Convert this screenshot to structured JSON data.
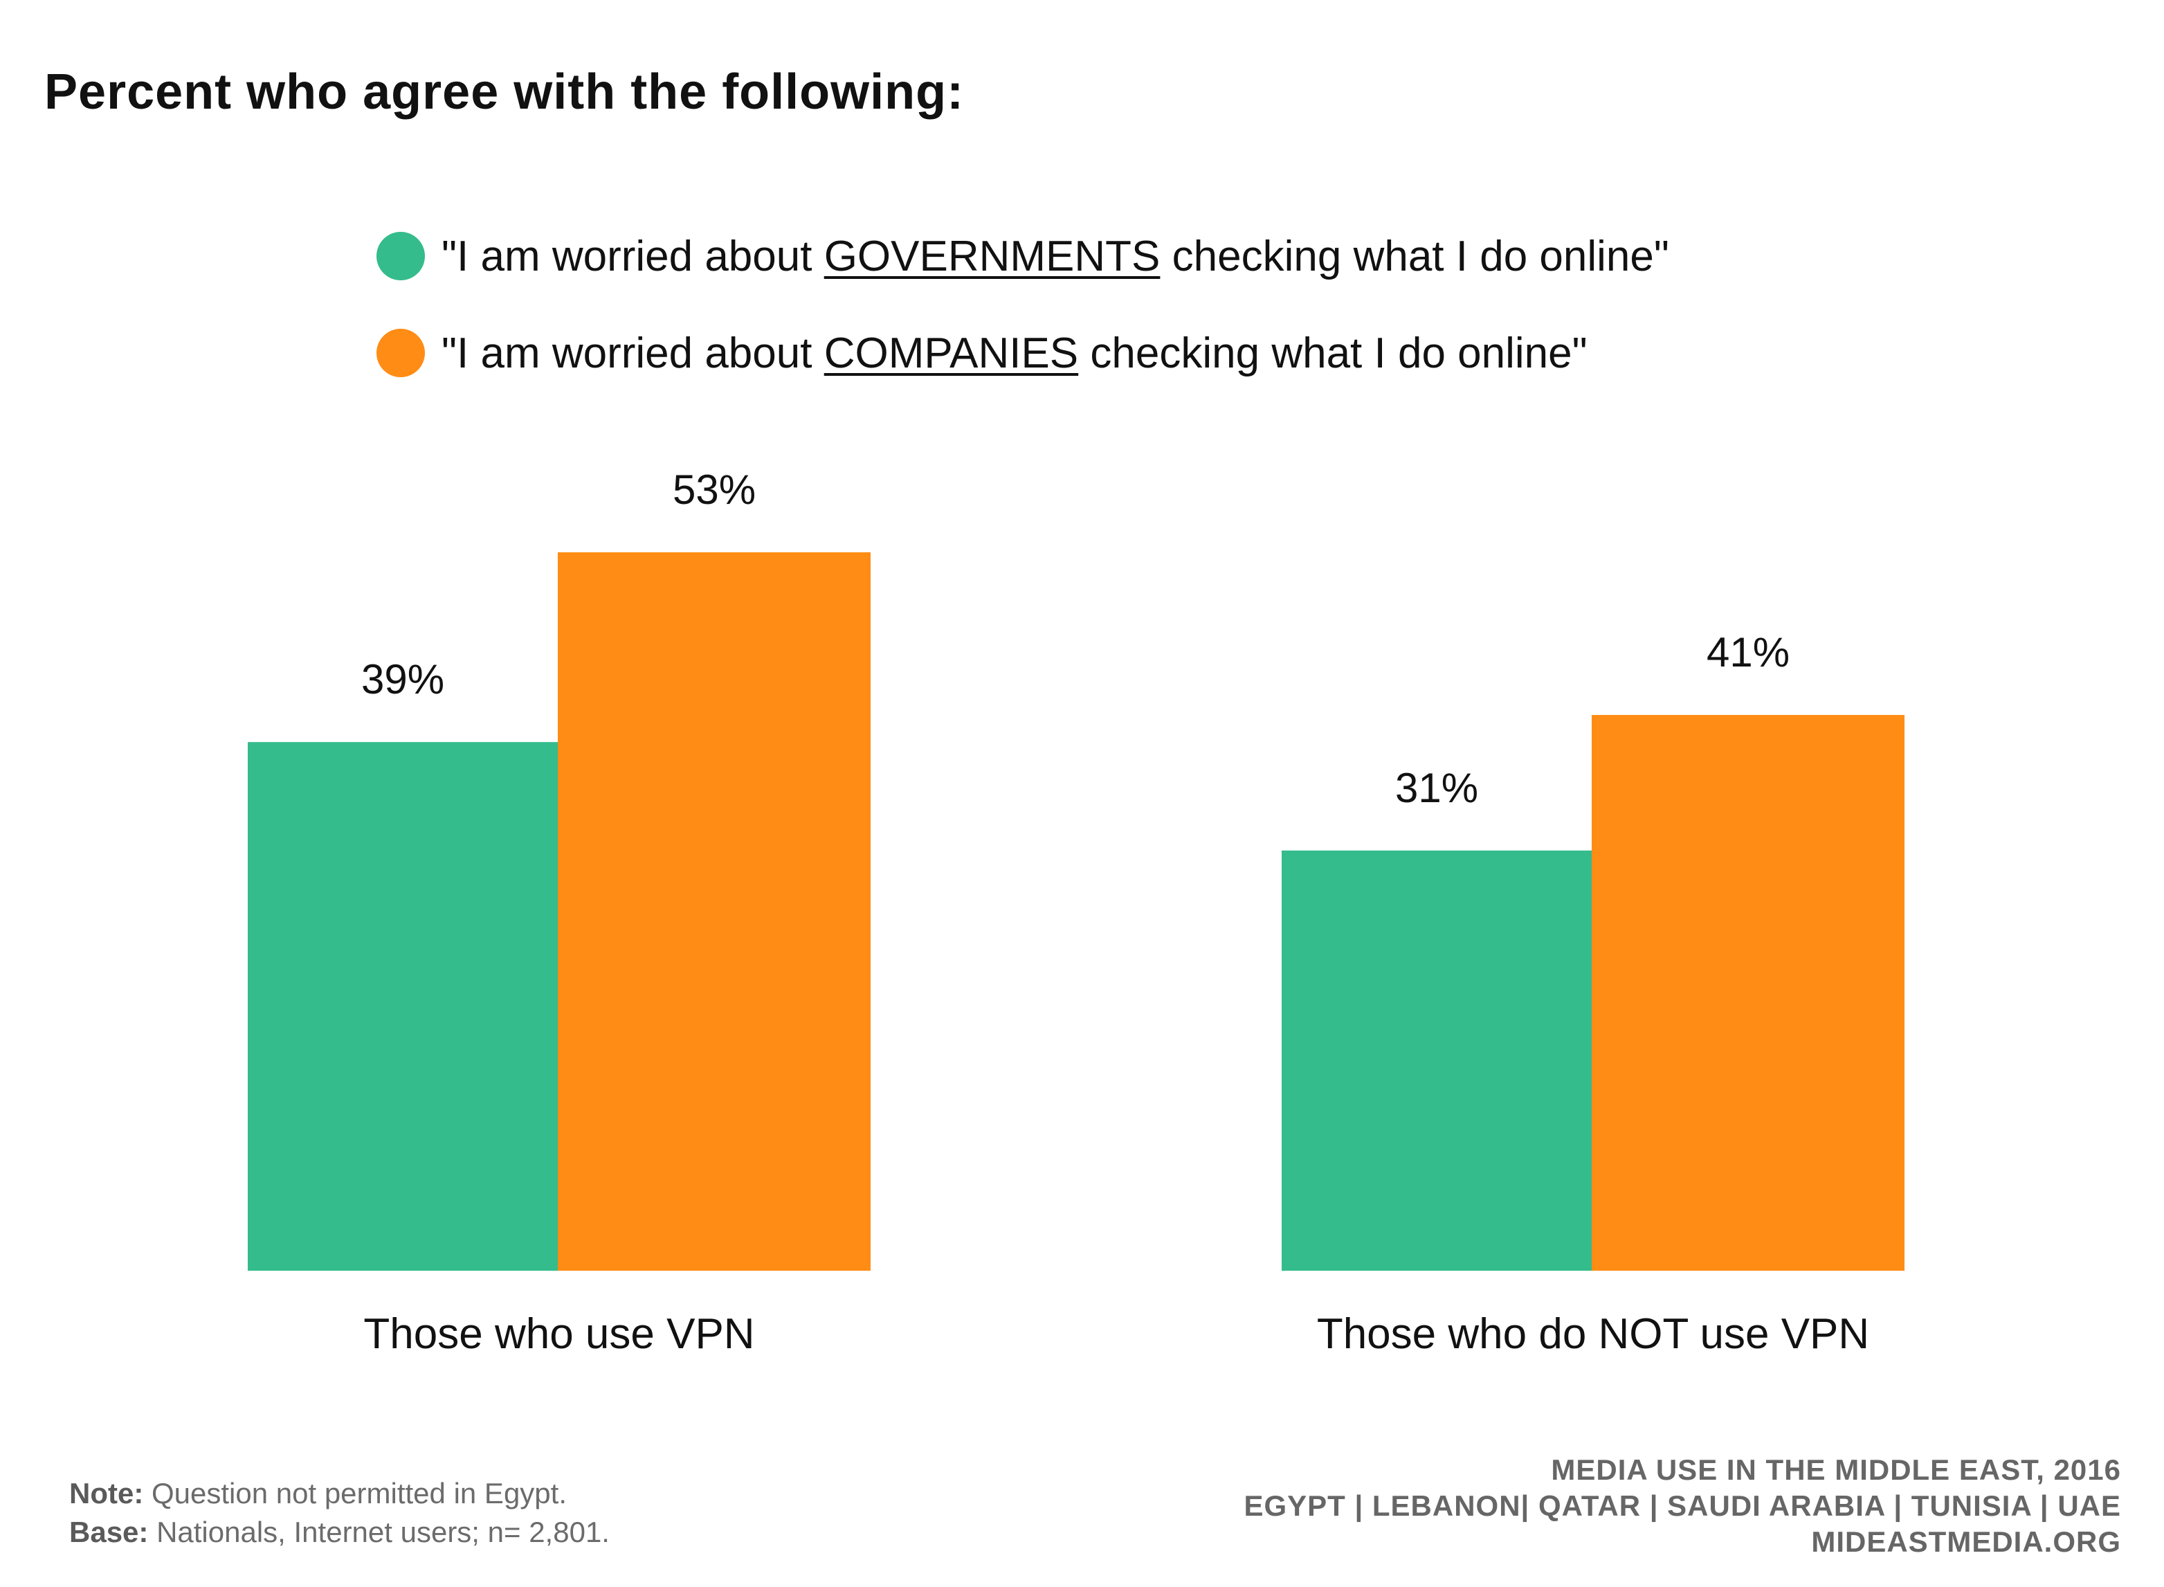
{
  "title": "Percent who agree with the following:",
  "legend": [
    {
      "prefix": "\"I am worried about ",
      "keyword": "GOVERNMENTS",
      "suffix": " checking what I do online\"",
      "color": "#34BC8C"
    },
    {
      "prefix": "\"I am worried about ",
      "keyword": "COMPANIES",
      "suffix": " checking what I do online\"",
      "color": "#FF8C14"
    }
  ],
  "chart_data": {
    "type": "bar",
    "title": "Percent who agree with the following:",
    "categories": [
      "Those who use VPN",
      "Those who do NOT use VPN"
    ],
    "series": [
      {
        "name": "\"I am worried about GOVERNMENTS checking what I do online\"",
        "values": [
          39,
          31
        ],
        "labels": [
          "39%",
          "31%"
        ],
        "color": "#34BC8C"
      },
      {
        "name": "\"I am worried about COMPANIES checking what I do online\"",
        "values": [
          53,
          41
        ],
        "labels": [
          "53%",
          "41%"
        ],
        "color": "#FF8C14"
      }
    ],
    "ylim": [
      0,
      53
    ],
    "grid": false,
    "legend_position": "top"
  },
  "footer": {
    "note_label": "Note:",
    "note_text": " Question not permitted in Egypt.",
    "base_label": "Base:",
    "base_text": " Nationals, Internet users; n= 2,801.",
    "source_line1": "MEDIA USE IN THE MIDDLE EAST, 2016",
    "source_line2": "EGYPT | LEBANON| QATAR | SAUDI ARABIA | TUNISIA | UAE",
    "source_line3": "MIDEASTMEDIA.ORG"
  }
}
